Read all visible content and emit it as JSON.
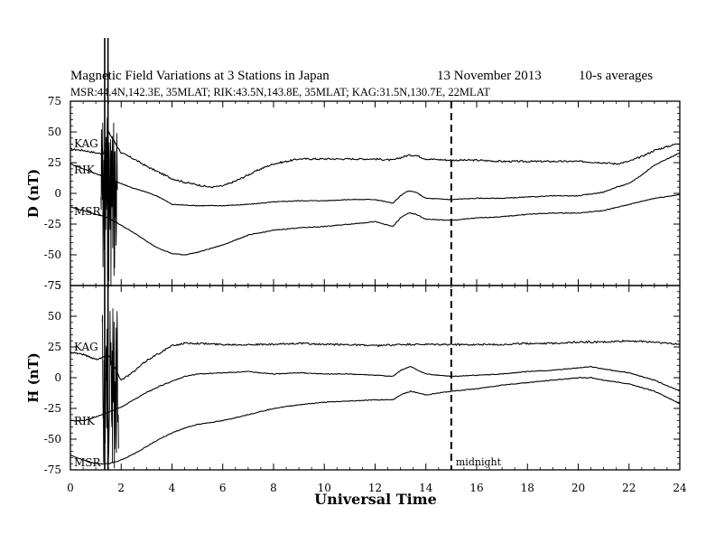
{
  "header": {
    "title": "Magnetic Field Variations at 3 Stations in Japan",
    "date": "13 November 2013",
    "averaging": "10-s averages",
    "stations_line": "MSR:44.4N,142.3E, 35MLAT;  RIK:43.5N,143.8E, 35MLAT;  KAG:31.5N,130.7E, 22MLAT"
  },
  "chart_data": [
    {
      "type": "line",
      "panel": "D",
      "ylabel": "D (nT)",
      "ylim": [
        -75,
        75
      ],
      "yticks": [
        75,
        50,
        25,
        0,
        -25,
        -50,
        -75
      ],
      "xlim": [
        0,
        24
      ],
      "xticks": [
        0,
        2,
        4,
        6,
        8,
        10,
        12,
        14,
        16,
        18,
        20,
        22,
        24
      ],
      "series": [
        {
          "name": "KAG",
          "x": [
            0,
            0.5,
            1,
            1.3,
            1.5,
            2,
            2.5,
            3,
            3.5,
            4,
            4.5,
            5,
            5.5,
            6,
            6.5,
            7,
            7.5,
            8,
            9,
            10,
            11,
            12,
            12.7,
            13,
            13.3,
            13.6,
            14,
            15,
            16,
            17,
            18,
            19,
            20,
            21,
            21.5,
            22,
            22.5,
            23,
            24
          ],
          "y": [
            36,
            35,
            33,
            32,
            50,
            33,
            28,
            22,
            17,
            12,
            9,
            7,
            5,
            6,
            10,
            15,
            20,
            24,
            28,
            28,
            28,
            28,
            27,
            29,
            31,
            31,
            28,
            27,
            27,
            26,
            26,
            26,
            26,
            25,
            24,
            26,
            30,
            35,
            41
          ]
        },
        {
          "name": "RIK",
          "x": [
            0,
            0.5,
            1,
            1.5,
            2,
            2.5,
            3,
            3.5,
            4,
            5,
            6,
            7,
            8,
            9,
            10,
            11,
            12,
            12.7,
            13,
            13.3,
            13.6,
            14,
            15,
            16,
            17,
            18,
            19,
            20,
            21,
            21.5,
            22,
            22.5,
            23,
            24
          ],
          "y": [
            24,
            20,
            16,
            12,
            8,
            4,
            1,
            -3,
            -9,
            -10,
            -10,
            -9,
            -7,
            -6,
            -6,
            -5,
            -5,
            -8,
            -2,
            2,
            1,
            -4,
            -5,
            -4,
            -4,
            -3,
            -2,
            -2,
            1,
            5,
            8,
            15,
            23,
            33
          ]
        },
        {
          "name": "MSR",
          "x": [
            0,
            0.5,
            1,
            1.5,
            2,
            2.5,
            3,
            3.5,
            4,
            4.5,
            5,
            6,
            7,
            8,
            9,
            10,
            11,
            12,
            12.7,
            13,
            13.3,
            13.6,
            14,
            15,
            16,
            17,
            18,
            19,
            20,
            21,
            22,
            23,
            24
          ],
          "y": [
            -11,
            -14,
            -17,
            -20,
            -26,
            -32,
            -39,
            -45,
            -49,
            -50,
            -48,
            -42,
            -34,
            -30,
            -28,
            -27,
            -25,
            -23,
            -27,
            -20,
            -16,
            -17,
            -21,
            -22,
            -20,
            -19,
            -17,
            -16,
            -16,
            -14,
            -9,
            -4,
            -1
          ]
        }
      ],
      "series_labels": [
        "KAG",
        "RIK",
        "MSR"
      ]
    },
    {
      "type": "line",
      "panel": "H",
      "ylabel": "H (nT)",
      "xlabel": "Universal Time",
      "ylim": [
        -75,
        75
      ],
      "yticks": [
        75,
        50,
        25,
        0,
        -25,
        -50,
        -75
      ],
      "xlim": [
        0,
        24
      ],
      "xticks": [
        0,
        2,
        4,
        6,
        8,
        10,
        12,
        14,
        16,
        18,
        20,
        22,
        24
      ],
      "series": [
        {
          "name": "KAG",
          "x": [
            0,
            0.5,
            1,
            1.5,
            2,
            2.5,
            3,
            3.5,
            4,
            4.5,
            5,
            6,
            7,
            8,
            9,
            10,
            11,
            12,
            13,
            14,
            15,
            16,
            17,
            18,
            19,
            20,
            21,
            22,
            23,
            24
          ],
          "y": [
            21,
            19,
            15,
            18,
            -2,
            5,
            14,
            20,
            26,
            28,
            28,
            27,
            27,
            27,
            28,
            27,
            27,
            26,
            27,
            27,
            27,
            27,
            27,
            28,
            28,
            29,
            29,
            30,
            29,
            27
          ]
        },
        {
          "name": "RIK",
          "x": [
            0,
            0.5,
            1,
            1.5,
            2,
            2.5,
            3,
            3.5,
            4,
            4.5,
            5,
            6,
            7,
            8,
            9,
            10,
            11,
            12,
            12.7,
            13,
            13.4,
            14,
            15,
            16,
            17,
            18,
            19,
            20,
            20.5,
            21,
            22,
            23,
            24
          ],
          "y": [
            -35,
            -35,
            -32,
            -28,
            -24,
            -18,
            -12,
            -7,
            -3,
            1,
            3,
            4,
            5,
            3,
            4,
            3,
            3,
            2,
            1,
            6,
            9,
            3,
            1,
            2,
            3,
            5,
            6,
            8,
            9,
            7,
            4,
            -2,
            -11
          ]
        },
        {
          "name": "MSR",
          "x": [
            0,
            0.5,
            1,
            1.5,
            2,
            2.5,
            3,
            3.5,
            4,
            4.5,
            5,
            6,
            7,
            8,
            9,
            10,
            11,
            12,
            12.7,
            13,
            13.4,
            14,
            15,
            16,
            17,
            18,
            19,
            20,
            20.5,
            21,
            22,
            23,
            24
          ],
          "y": [
            -63,
            -67,
            -70,
            -70,
            -67,
            -62,
            -56,
            -50,
            -45,
            -41,
            -38,
            -35,
            -30,
            -25,
            -22,
            -20,
            -19,
            -18,
            -18,
            -14,
            -11,
            -14,
            -11,
            -9,
            -6,
            -4,
            -2,
            0,
            0,
            -2,
            -5,
            -11,
            -21
          ]
        }
      ],
      "series_labels": [
        "KAG",
        "RIK",
        "MSR"
      ]
    }
  ],
  "annotations": {
    "midnight_label": "midnight",
    "midnight_x": 15
  }
}
